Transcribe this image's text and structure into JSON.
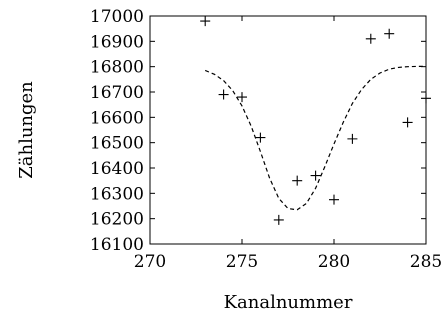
{
  "chart_data": {
    "type": "scatter",
    "xlabel": "Kanalnummer",
    "ylabel": "Zählungen",
    "xlim": [
      270,
      285
    ],
    "ylim": [
      16100,
      17000
    ],
    "xticks": [
      270,
      275,
      280,
      285
    ],
    "yticks": [
      16100,
      16200,
      16300,
      16400,
      16500,
      16600,
      16700,
      16800,
      16900,
      17000
    ],
    "grid": false,
    "legend": "none",
    "series": [
      {
        "kind": "points",
        "marker": "plus",
        "x": [
          273,
          274,
          275,
          276,
          277,
          278,
          279,
          280,
          281,
          282,
          283,
          284,
          285
        ],
        "y": [
          16980,
          16690,
          16680,
          16520,
          16195,
          16350,
          16370,
          16275,
          16515,
          16910,
          16930,
          16580,
          16675
        ]
      },
      {
        "kind": "fit",
        "style": "dashed",
        "x": [
          273,
          273.5,
          274,
          274.5,
          275,
          275.5,
          276,
          276.5,
          277,
          277.5,
          278,
          278.5,
          279,
          279.5,
          280,
          280.5,
          281,
          281.5,
          282,
          282.5,
          283,
          283.5,
          284,
          284.5,
          285
        ],
        "y": [
          16785,
          16770,
          16745,
          16705,
          16645,
          16565,
          16465,
          16360,
          16280,
          16240,
          16235,
          16260,
          16320,
          16405,
          16495,
          16580,
          16655,
          16710,
          16750,
          16775,
          16790,
          16797,
          16800,
          16801,
          16801
        ]
      }
    ]
  }
}
